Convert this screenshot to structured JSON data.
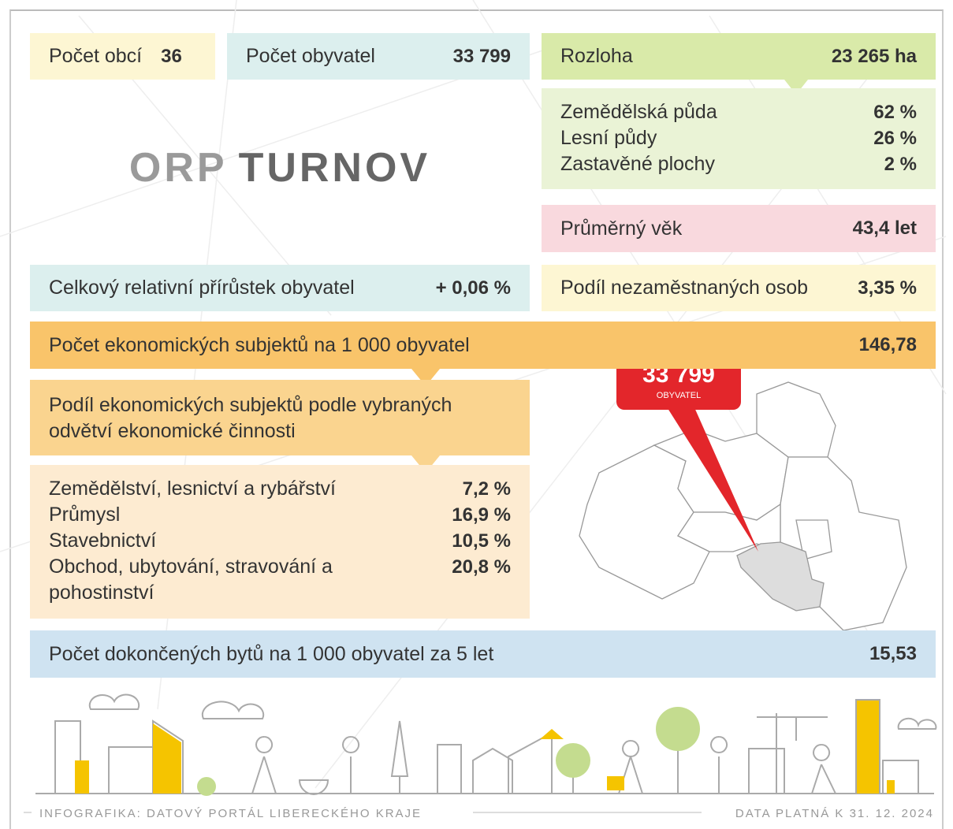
{
  "municipalities": {
    "label": "Počet obcí",
    "value": "36"
  },
  "population": {
    "label": "Počet obyvatel",
    "value": "33 799"
  },
  "area": {
    "label": "Rozloha",
    "value": "23 265 ha",
    "items": [
      {
        "label": "Zemědělská půda",
        "value": "62 %"
      },
      {
        "label": "Lesní půdy",
        "value": "26 %"
      },
      {
        "label": "Zastavěné plochy",
        "value": "2 %"
      }
    ]
  },
  "title": {
    "prefix": "ORP",
    "name": "TURNOV"
  },
  "average_age": {
    "label": "Průměrný věk",
    "value": "43,4 let"
  },
  "growth": {
    "label": "Celkový relativní přírůstek obyvatel",
    "value": "+ 0,06 %"
  },
  "unemployment": {
    "label": "Podíl nezaměstnaných osob",
    "value": "3,35 %"
  },
  "economic_subjects": {
    "label": "Počet ekonomických subjektů na 1 000 obyvatel",
    "value": "146,78"
  },
  "sectors": {
    "heading": "Podíl ekonomických subjektů podle vybraných odvětví ekonomické činnosti",
    "items": [
      {
        "label": "Zemědělství, lesnictví a rybářství",
        "value": "7,2 %"
      },
      {
        "label": "Průmysl",
        "value": "16,9 %"
      },
      {
        "label": "Stavebnictví",
        "value": "10,5 %"
      },
      {
        "label": "Obchod, ubytování, stravování a pohostinství",
        "value": "20,8 %"
      }
    ]
  },
  "map_callout": {
    "value": "33 799",
    "label": "OBYVATEL"
  },
  "dwellings": {
    "label": "Počet dokončených bytů na 1 000 obyvatel za 5 let",
    "value": "15,53"
  },
  "footer": {
    "source": "INFOGRAFIKA: DATOVÝ PORTÁL LIBERECKÉHO KRAJE",
    "date": "DATA PLATNÁ K 31. 12. 2024"
  }
}
